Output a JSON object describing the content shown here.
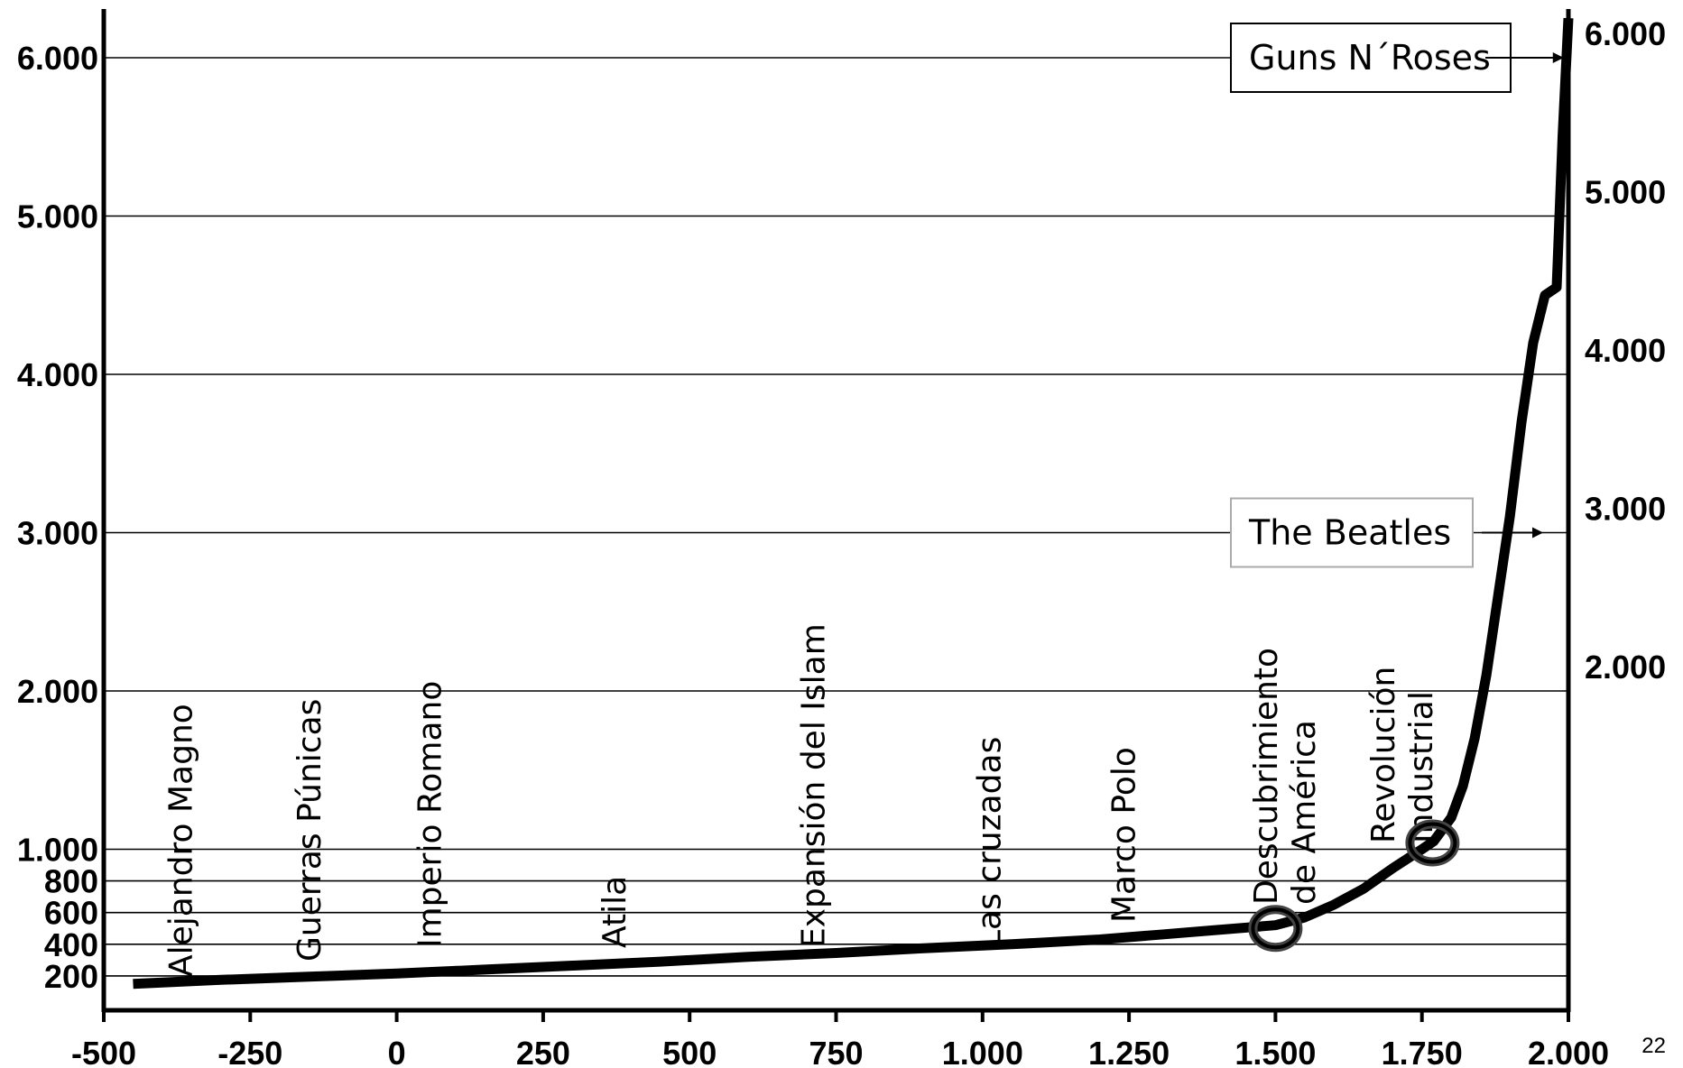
{
  "chart_data": {
    "type": "line",
    "x": [
      -450,
      -300,
      -150,
      0,
      150,
      300,
      450,
      600,
      750,
      900,
      1050,
      1200,
      1300,
      1400,
      1500,
      1550,
      1600,
      1650,
      1700,
      1750,
      1770,
      1800,
      1820,
      1840,
      1860,
      1880,
      1900,
      1920,
      1940,
      1960,
      1980,
      1990,
      2000
    ],
    "y": [
      150,
      175,
      195,
      215,
      240,
      265,
      290,
      320,
      345,
      375,
      400,
      430,
      460,
      490,
      520,
      570,
      650,
      750,
      880,
      1000,
      1050,
      1200,
      1400,
      1700,
      2100,
      2600,
      3100,
      3700,
      4200,
      4500,
      4550,
      5500,
      6250
    ],
    "xlim": [
      -500,
      2000
    ],
    "ylim": [
      0,
      6500
    ],
    "x_ticks": [
      "-500",
      "-250",
      "0",
      "250",
      "500",
      "750",
      "1.000",
      "1.250",
      "1.500",
      "1.750",
      "2.000"
    ],
    "x_tick_values": [
      -500,
      -250,
      0,
      250,
      500,
      750,
      1000,
      1250,
      1500,
      1750,
      2000
    ],
    "y_ticks_left": [
      "200",
      "400",
      "600",
      "800",
      "1.000",
      "2.000",
      "3.000",
      "4.000",
      "5.000",
      "6.000"
    ],
    "y_tick_left_values": [
      200,
      400,
      600,
      800,
      1000,
      2000,
      3000,
      4000,
      5000,
      6000
    ],
    "y_ticks_right": [
      "2.000",
      "3.000",
      "4.000",
      "5.000",
      "6.000"
    ],
    "y_tick_right_values": [
      2000,
      3000,
      4000,
      5000,
      6000
    ],
    "grid": true,
    "events": [
      {
        "lines": [
          "Alejandro Magno"
        ],
        "x": -370
      },
      {
        "lines": [
          "Guerras Púnicas"
        ],
        "x": -150
      },
      {
        "lines": [
          "Imperio Romano"
        ],
        "x": 55
      },
      {
        "lines": [
          "Atila"
        ],
        "x": 370
      },
      {
        "lines": [
          "Expansión del Islam"
        ],
        "x": 710
      },
      {
        "lines": [
          "Las cruzadas"
        ],
        "x": 1010
      },
      {
        "lines": [
          "Marco Polo"
        ],
        "x": 1240
      },
      {
        "lines": [
          "Descubrimiento",
          "de América"
        ],
        "x": 1515
      },
      {
        "lines": [
          "Revolución",
          "Industrial"
        ],
        "x": 1715
      }
    ],
    "markers": [
      {
        "x": 1500,
        "y": 500
      },
      {
        "x": 1768,
        "y": 1040
      }
    ],
    "callouts": [
      {
        "text": "Guns N´Roses",
        "y": 6000,
        "arrow_to_x": 1995
      },
      {
        "text": "The Beatles",
        "y": 3000,
        "arrow_to_x": 1960
      }
    ]
  },
  "page_number": "22"
}
